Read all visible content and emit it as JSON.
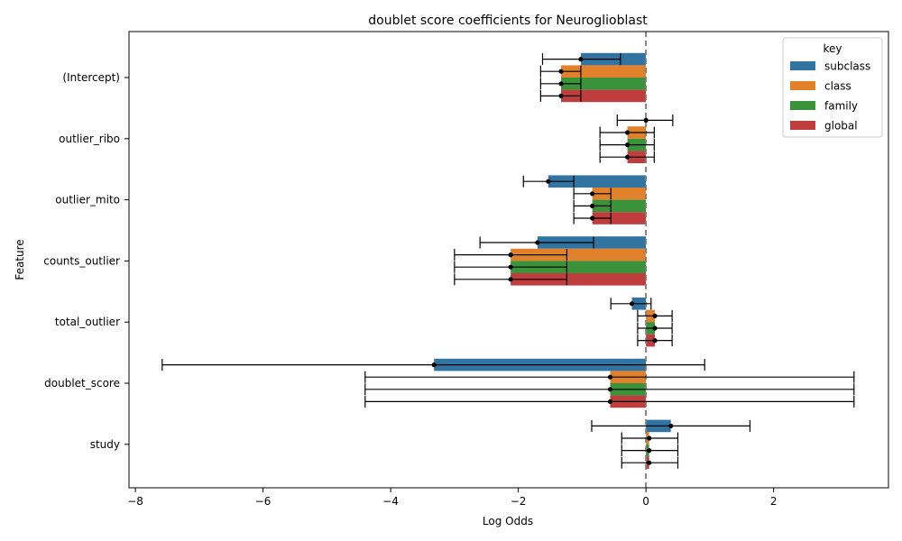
{
  "chart_data": {
    "type": "bar",
    "orientation": "horizontal",
    "title": "doublet score coefficients for Neuroglioblast",
    "xlabel": "Log Odds",
    "ylabel": "Feature",
    "xlim": [
      -8.1,
      3.8
    ],
    "xticks": [
      -8,
      -6,
      -4,
      -2,
      0,
      2
    ],
    "reference_line": 0,
    "categories": [
      "(Intercept)",
      "outlier_ribo",
      "outlier_mito",
      "counts_outlier",
      "total_outlier",
      "doublet_score",
      "study"
    ],
    "legend": {
      "title": "key",
      "placement": "top-right"
    },
    "series": [
      {
        "name": "subclass",
        "color": "#3274a1",
        "values": [
          -1.02,
          0.0,
          -1.53,
          -1.7,
          -0.22,
          -3.32,
          0.39
        ],
        "err_low": [
          -1.62,
          -0.45,
          -1.92,
          -2.6,
          -0.55,
          -7.58,
          -0.85
        ],
        "err_high": [
          -0.4,
          0.42,
          -1.13,
          -0.82,
          0.08,
          0.92,
          1.63
        ]
      },
      {
        "name": "class",
        "color": "#e1812c",
        "values": [
          -1.33,
          -0.29,
          -0.84,
          -2.12,
          0.14,
          -0.56,
          0.05
        ],
        "err_low": [
          -1.65,
          -0.72,
          -1.13,
          -3.0,
          -0.13,
          -4.4,
          -0.38
        ],
        "err_high": [
          -1.02,
          0.13,
          -0.55,
          -1.24,
          0.41,
          3.26,
          0.5
        ]
      },
      {
        "name": "family",
        "color": "#3a923a",
        "values": [
          -1.33,
          -0.29,
          -0.84,
          -2.12,
          0.14,
          -0.56,
          0.05
        ],
        "err_low": [
          -1.65,
          -0.72,
          -1.13,
          -3.0,
          -0.13,
          -4.4,
          -0.38
        ],
        "err_high": [
          -1.02,
          0.13,
          -0.55,
          -1.24,
          0.41,
          3.26,
          0.5
        ]
      },
      {
        "name": "global",
        "color": "#c03d3e",
        "values": [
          -1.33,
          -0.29,
          -0.84,
          -2.12,
          0.14,
          -0.56,
          0.05
        ],
        "err_low": [
          -1.65,
          -0.72,
          -1.13,
          -3.0,
          -0.13,
          -4.4,
          -0.38
        ],
        "err_high": [
          -1.02,
          0.13,
          -0.55,
          -1.24,
          0.41,
          3.26,
          0.5
        ]
      }
    ]
  }
}
